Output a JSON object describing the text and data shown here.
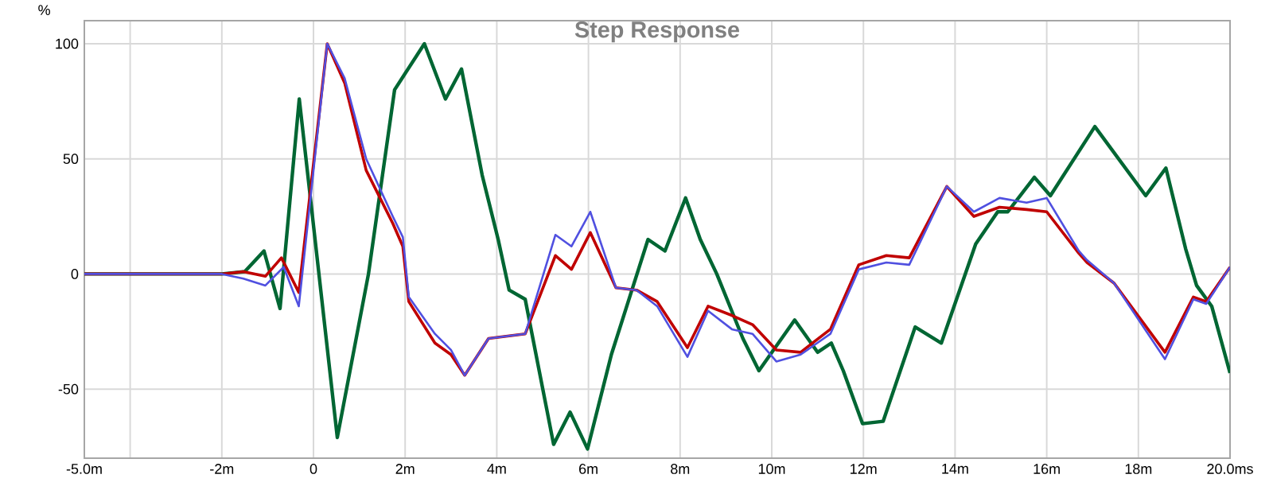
{
  "chart_data": {
    "type": "line",
    "title": "Step Response",
    "ylabel": "%",
    "xlim": [
      -5,
      20
    ],
    "ylim": [
      -80,
      110
    ],
    "xticks": [
      {
        "value": -5,
        "label": "-5.0m"
      },
      {
        "value": -4,
        "label": null
      },
      {
        "value": -2,
        "label": "-2m"
      },
      0,
      {
        "value": 2,
        "label": "2m"
      },
      {
        "value": 4,
        "label": "4m"
      },
      {
        "value": 6,
        "label": "6m"
      },
      {
        "value": 8,
        "label": "8m"
      },
      {
        "value": 10,
        "label": "10m"
      },
      {
        "value": 12,
        "label": "12m"
      },
      {
        "value": 14,
        "label": "14m"
      },
      {
        "value": 16,
        "label": "16m"
      },
      {
        "value": 18,
        "label": "18m"
      },
      {
        "value": 20,
        "label": "20.0ms"
      }
    ],
    "yticks": [
      -50,
      0,
      50,
      100
    ],
    "grid": true,
    "marker": "none",
    "line_style": "solid",
    "series": [
      {
        "color": "#006633",
        "x": [
          -5,
          -2,
          -1.5,
          -1.08,
          -0.73,
          -0.31,
          0.52,
          1.2,
          1.77,
          2.42,
          2.88,
          3.23,
          3.68,
          4.03,
          4.27,
          4.62,
          5.24,
          5.6,
          5.98,
          6.5,
          6.9,
          7.3,
          7.67,
          8.12,
          8.44,
          8.8,
          9.37,
          9.72,
          10.5,
          11.0,
          11.3,
          11.56,
          11.98,
          12.43,
          13.13,
          13.7,
          14.45,
          14.93,
          15.15,
          15.73,
          16.08,
          17.05,
          18.16,
          18.6,
          19.03,
          19.27,
          19.6,
          20
        ],
        "values": [
          0,
          0,
          1,
          10,
          -15,
          76,
          -71,
          0,
          80,
          100,
          76,
          89,
          43,
          15,
          -7,
          -11,
          -74,
          -60,
          -76,
          -35,
          -10,
          15,
          10,
          33,
          15,
          0,
          -28,
          -42,
          -20,
          -34,
          -30,
          -42,
          -65,
          -64,
          -23,
          -30,
          13,
          27,
          27,
          42,
          34,
          64,
          34,
          46,
          11,
          -5,
          -14,
          -43
        ]
      },
      {
        "color": "#c00000",
        "x": [
          -5,
          -2,
          -1.53,
          -1.05,
          -0.7,
          -0.32,
          0.3,
          0.68,
          1.15,
          1.73,
          1.95,
          2.08,
          2.65,
          3.0,
          3.3,
          3.82,
          4.62,
          5.28,
          5.63,
          6.04,
          6.6,
          7.05,
          7.5,
          8.16,
          8.61,
          9.13,
          9.58,
          10.1,
          10.63,
          11.28,
          11.9,
          12.5,
          13.0,
          13.82,
          14.41,
          14.97,
          15.56,
          16.0,
          16.7,
          16.88,
          17.47,
          18.58,
          19.2,
          19.48,
          20
        ],
        "values": [
          0,
          0,
          1,
          -1,
          7,
          -8,
          100,
          83,
          45,
          22,
          12,
          -12,
          -30,
          -35,
          -44,
          -28,
          -26,
          8,
          2,
          18,
          -6,
          -7,
          -12,
          -32,
          -14,
          -18,
          -22,
          -33,
          -34,
          -24,
          4,
          8,
          7,
          38,
          25,
          29,
          28,
          27,
          9,
          5,
          -4,
          -34,
          -10,
          -12,
          3
        ]
      },
      {
        "color": "#5050e0",
        "x": [
          -5,
          -2,
          -1.53,
          -1.05,
          -0.65,
          -0.32,
          0.3,
          0.68,
          1.15,
          1.73,
          1.95,
          2.08,
          2.65,
          3.0,
          3.3,
          3.82,
          4.62,
          5.28,
          5.63,
          6.04,
          6.6,
          7.05,
          7.5,
          8.16,
          8.61,
          9.13,
          9.58,
          10.1,
          10.63,
          11.28,
          11.9,
          12.5,
          13.0,
          13.82,
          14.41,
          14.97,
          15.56,
          16.0,
          16.7,
          16.88,
          17.47,
          18.58,
          19.2,
          19.48,
          20
        ],
        "values": [
          0,
          0,
          -2,
          -5,
          3,
          -14,
          100,
          85,
          50,
          25,
          16,
          -10,
          -26,
          -33,
          -44,
          -28,
          -26,
          17,
          12,
          27,
          -6,
          -7,
          -14,
          -36,
          -16,
          -24,
          -26,
          -38,
          -35,
          -26,
          2,
          5,
          4,
          38,
          27,
          33,
          31,
          33,
          10,
          6,
          -4,
          -37,
          -11,
          -13,
          3
        ]
      }
    ]
  }
}
